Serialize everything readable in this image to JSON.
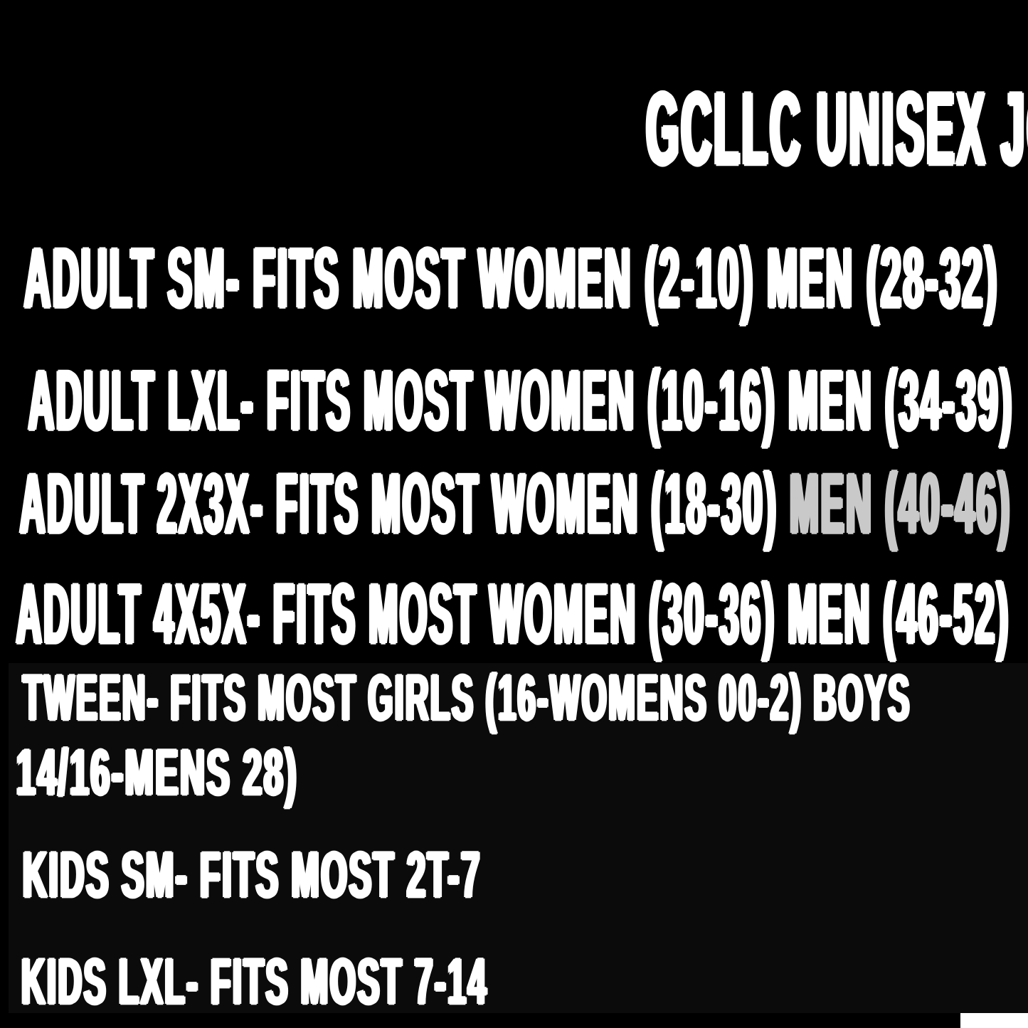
{
  "image": {
    "background_color": "#000000",
    "text_color": "#ffffff",
    "dim_text_color": "#c9c9c9",
    "corner_artifact_color": "#ffffff"
  },
  "size_chart": {
    "title": "GCLLC UNISEX JOGGERS SIZE CHART",
    "entries": [
      {
        "label": "ADULT SM- FITS MOST WOMEN (2-10) MEN (28-32)"
      },
      {
        "label": "ADULT LXL- FITS MOST WOMEN (10-16) MEN (34-39)"
      },
      {
        "label": "ADULT 2X3X- FITS MOST WOMEN (18-30)",
        "label_dim": " MEN (40-46)"
      },
      {
        "label": "ADULT 4X5X- FITS MOST WOMEN (30-36) MEN (46-52)"
      },
      {
        "label": "TWEEN- FITS MOST GIRLS (16-WOMENS 00-2) BOYS",
        "label_line2": "14/16-MENS 28)"
      },
      {
        "label": "KIDS SM- FITS MOST 2T-7"
      },
      {
        "label": "KIDS LXL- FITS MOST 7-14"
      }
    ]
  }
}
